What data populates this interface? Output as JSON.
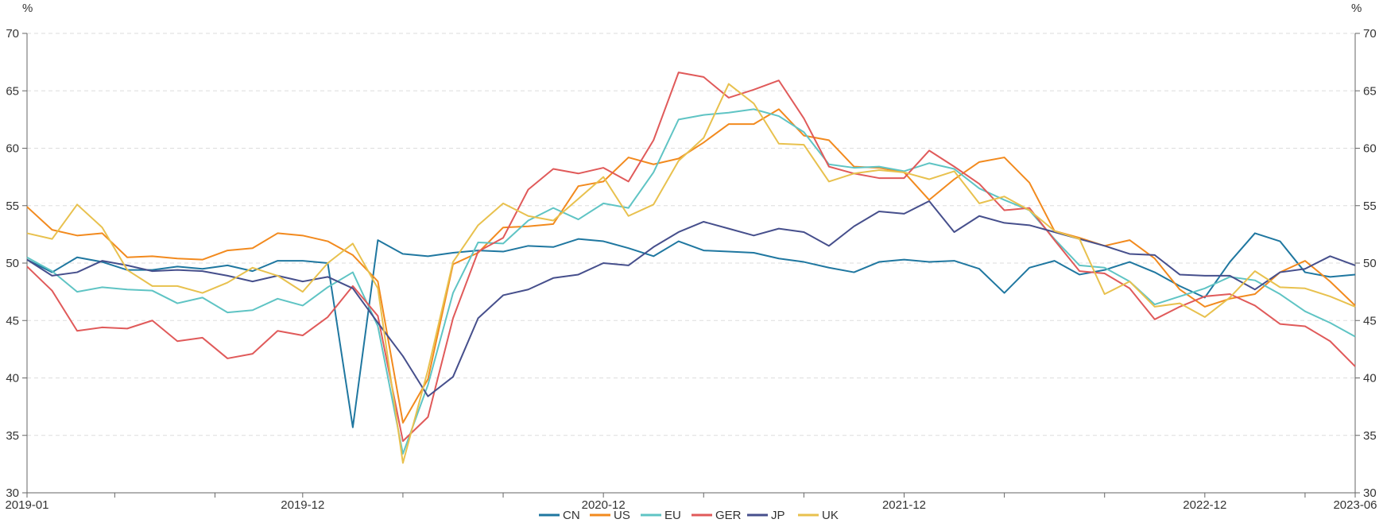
{
  "chart_data": {
    "type": "line",
    "title": "",
    "xlabel": "",
    "ylabel": "%",
    "y2label": "%",
    "ylim": [
      30,
      70
    ],
    "yticks": [
      30,
      35,
      40,
      45,
      50,
      55,
      60,
      65,
      70
    ],
    "grid": "horizontal-dashed",
    "legend": "bottom-center",
    "x_tick_labels": [
      "2019-01",
      "2019-12",
      "2020-12",
      "2021-12",
      "2022-12",
      "2023-06"
    ],
    "x": [
      "2019-01",
      "2019-02",
      "2019-03",
      "2019-04",
      "2019-05",
      "2019-06",
      "2019-07",
      "2019-08",
      "2019-09",
      "2019-10",
      "2019-11",
      "2019-12",
      "2020-01",
      "2020-02",
      "2020-03",
      "2020-04",
      "2020-05",
      "2020-06",
      "2020-07",
      "2020-08",
      "2020-09",
      "2020-10",
      "2020-11",
      "2020-12",
      "2021-01",
      "2021-02",
      "2021-03",
      "2021-04",
      "2021-05",
      "2021-06",
      "2021-07",
      "2021-08",
      "2021-09",
      "2021-10",
      "2021-11",
      "2021-12",
      "2022-01",
      "2022-02",
      "2022-03",
      "2022-04",
      "2022-05",
      "2022-06",
      "2022-07",
      "2022-08",
      "2022-09",
      "2022-10",
      "2022-11",
      "2022-12",
      "2023-01",
      "2023-02",
      "2023-03",
      "2023-04",
      "2023-05",
      "2023-06"
    ],
    "series": [
      {
        "name": "CN",
        "color": "#1f77a0",
        "values": [
          50.3,
          49.2,
          50.5,
          50.1,
          49.4,
          49.4,
          49.7,
          49.5,
          49.8,
          49.3,
          50.2,
          50.2,
          50.0,
          35.7,
          52.0,
          50.8,
          50.6,
          50.9,
          51.1,
          51.0,
          51.5,
          51.4,
          52.1,
          51.9,
          51.3,
          50.6,
          51.9,
          51.1,
          51.0,
          50.9,
          50.4,
          50.1,
          49.6,
          49.2,
          50.1,
          50.3,
          50.1,
          50.2,
          49.5,
          47.4,
          49.6,
          50.2,
          49.0,
          49.4,
          50.1,
          49.2,
          48.0,
          47.0,
          50.1,
          52.6,
          51.9,
          49.2,
          48.8,
          49.0
        ]
      },
      {
        "name": "US",
        "color": "#f28a1e",
        "values": [
          54.9,
          52.9,
          52.4,
          52.6,
          50.5,
          50.6,
          50.4,
          50.3,
          51.1,
          51.3,
          52.6,
          52.4,
          51.9,
          50.7,
          48.4,
          36.1,
          39.9,
          49.9,
          50.9,
          53.1,
          53.2,
          53.4,
          56.7,
          57.1,
          59.2,
          58.6,
          59.1,
          60.5,
          62.1,
          62.1,
          63.4,
          61.1,
          60.7,
          58.4,
          58.3,
          57.9,
          55.5,
          57.3,
          58.8,
          59.2,
          57.0,
          52.8,
          52.2,
          51.5,
          52.0,
          50.4,
          47.7,
          46.2,
          46.9,
          47.3,
          49.2,
          50.2,
          48.4,
          46.3
        ]
      },
      {
        "name": "EU",
        "color": "#5fc4c4",
        "values": [
          50.5,
          49.3,
          47.5,
          47.9,
          47.7,
          47.6,
          46.5,
          47.0,
          45.7,
          45.9,
          46.9,
          46.3,
          47.9,
          49.2,
          44.5,
          33.4,
          39.4,
          47.4,
          51.8,
          51.7,
          53.7,
          54.8,
          53.8,
          55.2,
          54.8,
          57.9,
          62.5,
          62.9,
          63.1,
          63.4,
          62.8,
          61.4,
          58.6,
          58.3,
          58.4,
          58.0,
          58.7,
          58.2,
          56.5,
          55.5,
          54.6,
          52.1,
          49.8,
          49.6,
          48.4,
          46.4,
          47.1,
          47.8,
          48.8,
          48.5,
          47.3,
          45.8,
          44.8,
          43.6
        ]
      },
      {
        "name": "GER",
        "color": "#e05a5a",
        "values": [
          49.7,
          47.6,
          44.1,
          44.4,
          44.3,
          45.0,
          43.2,
          43.5,
          41.7,
          42.1,
          44.1,
          43.7,
          45.3,
          48.0,
          45.4,
          34.5,
          36.6,
          45.2,
          51.0,
          52.2,
          56.4,
          58.2,
          57.8,
          58.3,
          57.1,
          60.7,
          66.6,
          66.2,
          64.4,
          65.1,
          65.9,
          62.6,
          58.4,
          57.8,
          57.4,
          57.4,
          59.8,
          58.4,
          56.9,
          54.6,
          54.8,
          52.0,
          49.3,
          49.1,
          47.8,
          45.1,
          46.2,
          47.1,
          47.3,
          46.3,
          44.7,
          44.5,
          43.2,
          41.0
        ]
      },
      {
        "name": "JP",
        "color": "#464f8c",
        "values": [
          50.3,
          48.9,
          49.2,
          50.2,
          49.8,
          49.3,
          49.4,
          49.3,
          48.9,
          48.4,
          48.9,
          48.4,
          48.8,
          47.8,
          44.8,
          41.9,
          38.4,
          40.1,
          45.2,
          47.2,
          47.7,
          48.7,
          49.0,
          50.0,
          49.8,
          51.4,
          52.7,
          53.6,
          53.0,
          52.4,
          53.0,
          52.7,
          51.5,
          53.2,
          54.5,
          54.3,
          55.4,
          52.7,
          54.1,
          53.5,
          53.3,
          52.7,
          52.1,
          51.5,
          50.8,
          50.7,
          49.0,
          48.9,
          48.9,
          47.7,
          49.2,
          49.5,
          50.6,
          49.8
        ]
      },
      {
        "name": "UK",
        "color": "#e8c14e",
        "values": [
          52.6,
          52.1,
          55.1,
          53.1,
          49.4,
          48.0,
          48.0,
          47.4,
          48.3,
          49.6,
          48.9,
          47.5,
          50.0,
          51.7,
          47.8,
          32.6,
          40.7,
          50.1,
          53.3,
          55.2,
          54.1,
          53.7,
          55.6,
          57.5,
          54.1,
          55.1,
          58.9,
          60.9,
          65.6,
          63.9,
          60.4,
          60.3,
          57.1,
          57.8,
          58.1,
          57.9,
          57.3,
          58.0,
          55.2,
          55.8,
          54.6,
          52.8,
          52.1,
          47.3,
          48.4,
          46.2,
          46.5,
          45.3,
          47.0,
          49.3,
          47.9,
          47.8,
          47.1,
          46.2
        ]
      }
    ]
  }
}
